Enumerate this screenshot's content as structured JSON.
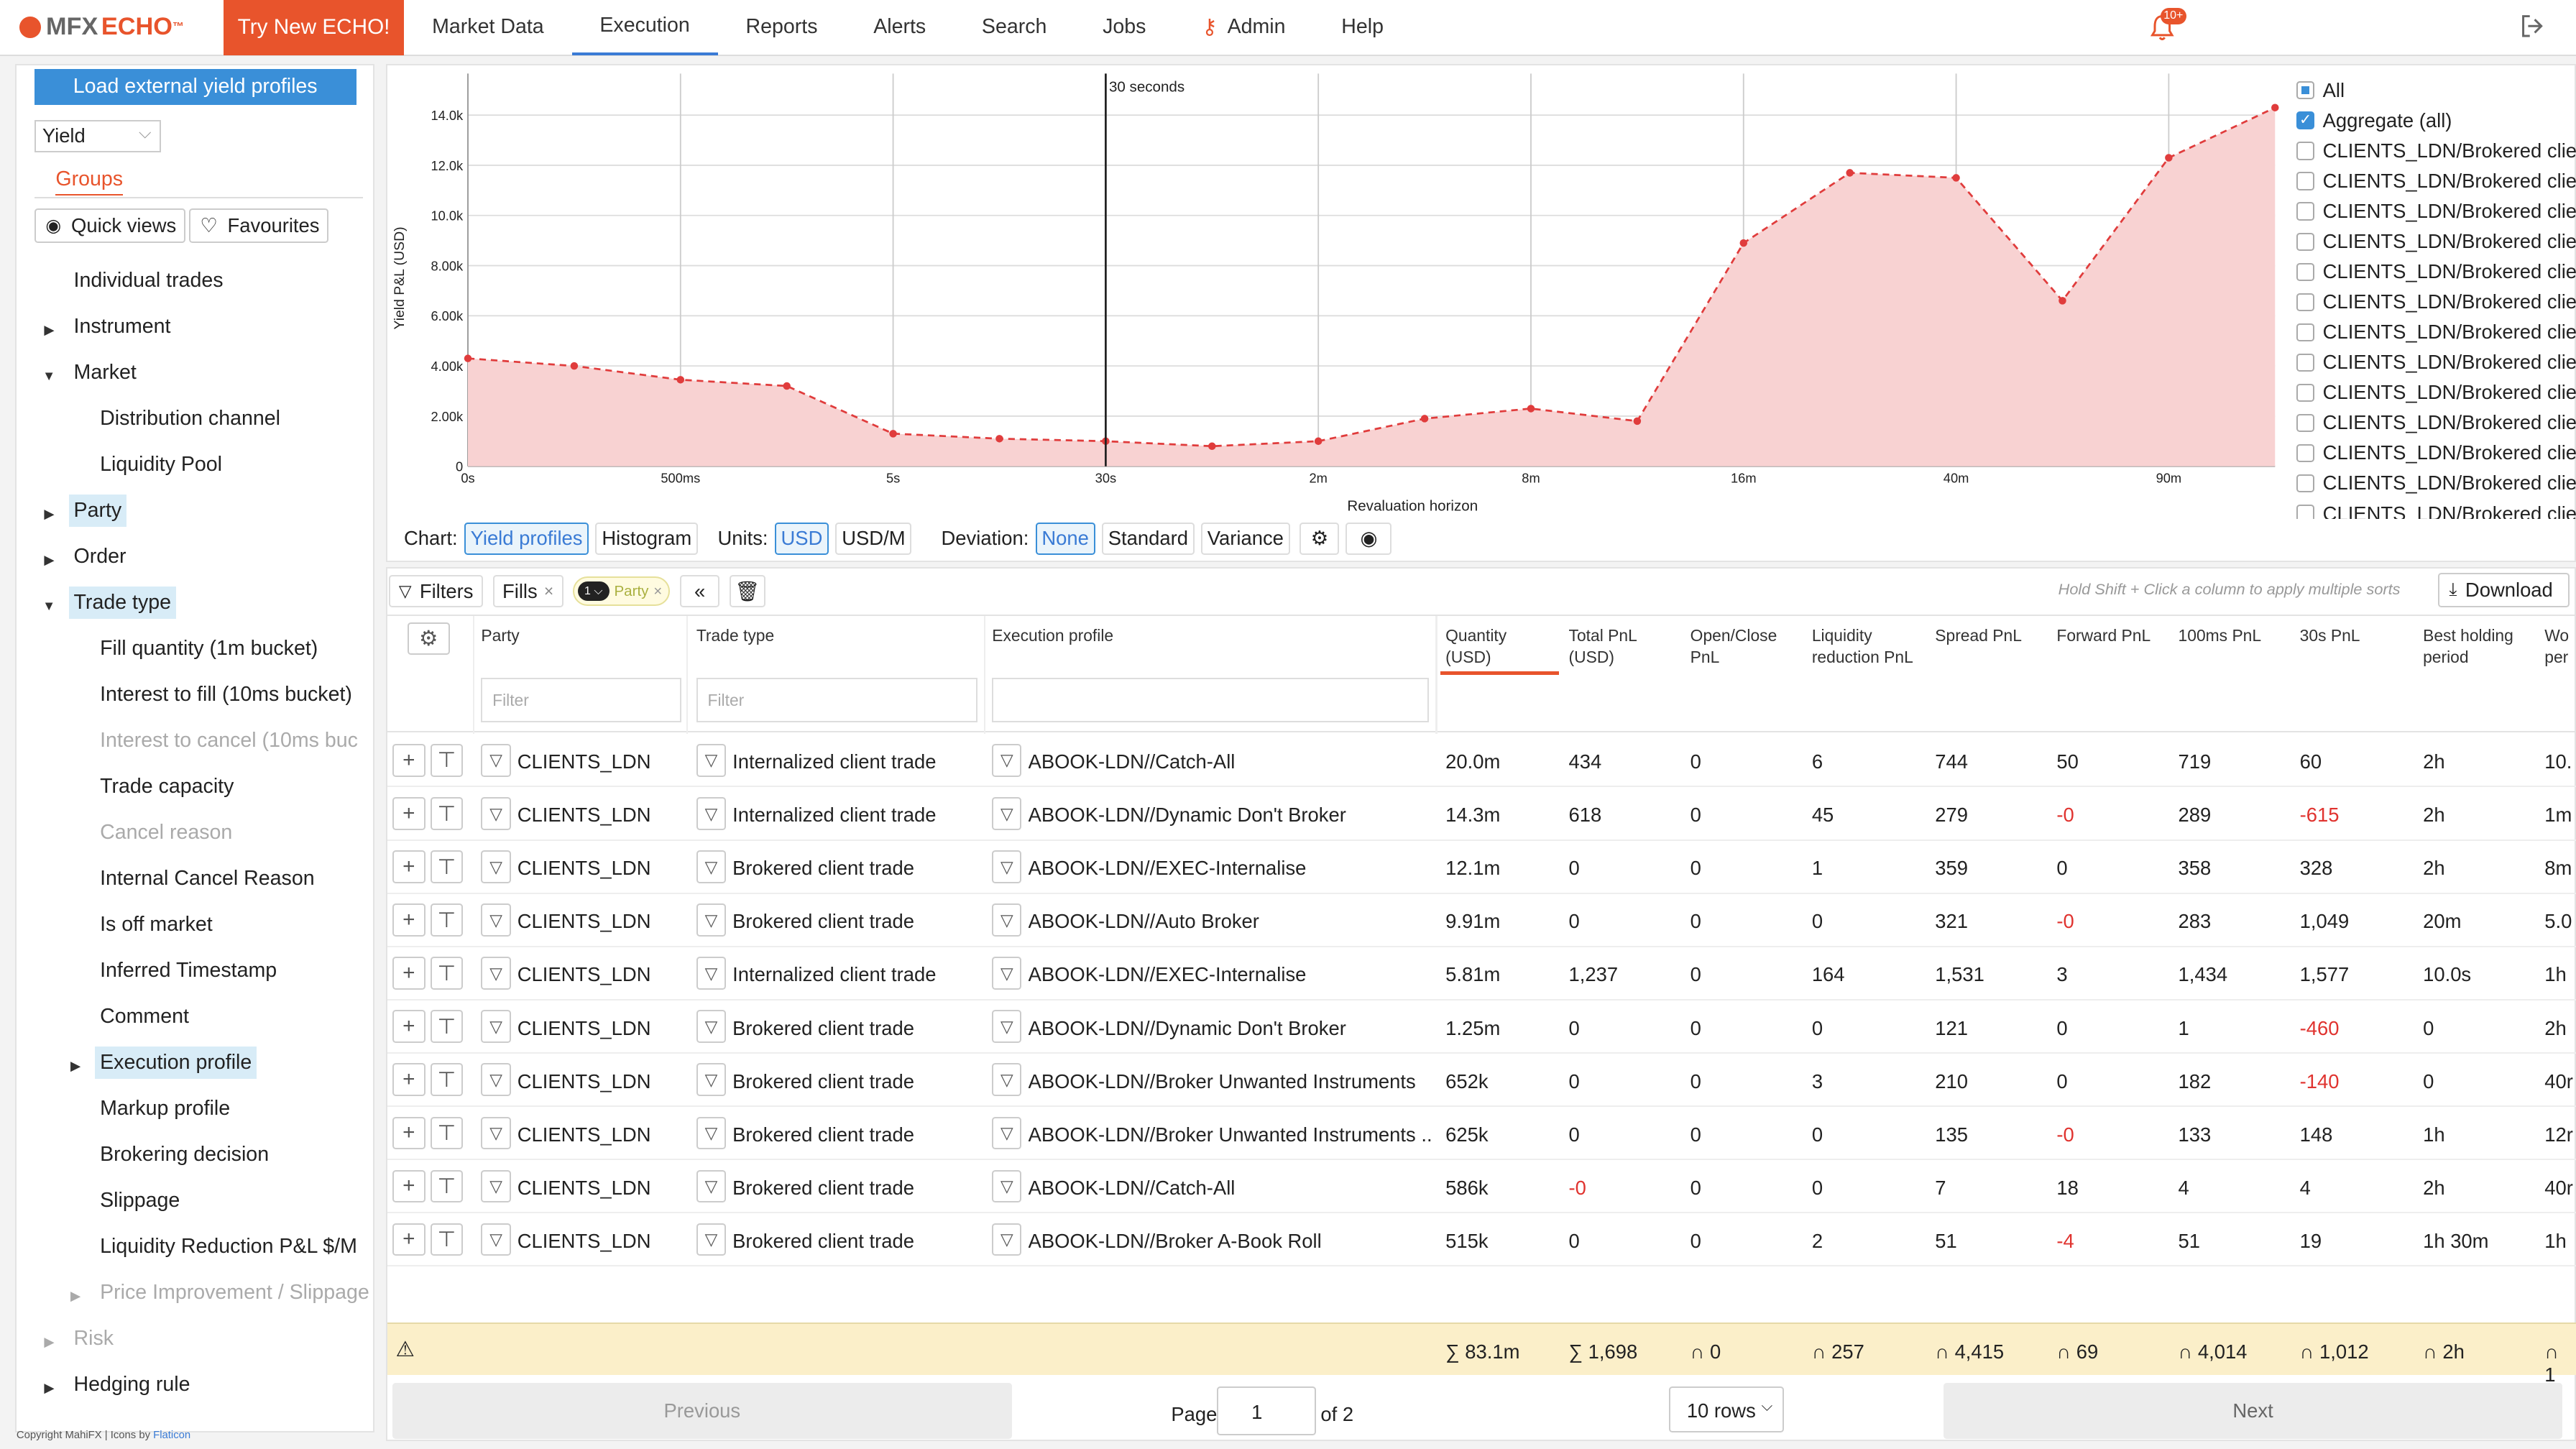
{
  "app": {
    "logo_prefix": "MFX",
    "logo_name": "ECHO",
    "logo_tm": "™",
    "try_button": "Try New ECHO!",
    "notifications_badge": "10+"
  },
  "nav": [
    "Market Data",
    "Execution",
    "Reports",
    "Alerts",
    "Search",
    "Jobs",
    "Admin",
    "Help"
  ],
  "nav_active": "Execution",
  "sidebar": {
    "load_button": "Load external yield profiles",
    "yield_select": "Yield",
    "groups_tab": "Groups",
    "quick_views": "Quick views",
    "favourites": "Favourites",
    "tree": [
      {
        "label": "Individual trades"
      },
      {
        "label": "Instrument"
      },
      {
        "label": "Market"
      },
      {
        "label": "Distribution channel"
      },
      {
        "label": "Liquidity Pool"
      },
      {
        "label": "Party"
      },
      {
        "label": "Order"
      },
      {
        "label": "Trade type"
      },
      {
        "label": "Fill quantity (1m bucket)"
      },
      {
        "label": "Interest to fill (10ms bucket)"
      },
      {
        "label": "Interest to cancel (10ms bucket)"
      },
      {
        "label": "Trade capacity"
      },
      {
        "label": "Cancel reason"
      },
      {
        "label": "Internal Cancel Reason"
      },
      {
        "label": "Is off market"
      },
      {
        "label": "Inferred Timestamp"
      },
      {
        "label": "Comment"
      },
      {
        "label": "Execution profile"
      },
      {
        "label": "Markup profile"
      },
      {
        "label": "Brokering decision"
      },
      {
        "label": "Slippage"
      },
      {
        "label": "Liquidity Reduction P&L $/M"
      },
      {
        "label": "Price Improvement / Slippage"
      },
      {
        "label": "Risk"
      },
      {
        "label": "Hedging rule"
      }
    ],
    "copyright_text": "Copyright MahiFX | Icons by ",
    "copyright_link": "Flaticon"
  },
  "chart_data": {
    "type": "area",
    "ylabel": "Yield P&L (USD)",
    "xlabel": "Revaluation horizon",
    "x_ticks": [
      "0s",
      "500ms",
      "5s",
      "30s",
      "2m",
      "8m",
      "16m",
      "40m",
      "90m"
    ],
    "y_ticks": [
      "0",
      "2.00k",
      "4.00k",
      "6.00k",
      "8.00k",
      "10.0k",
      "12.0k",
      "14.0k"
    ],
    "ylim": [
      0,
      15000
    ],
    "marker_label": "30 seconds",
    "series": [
      {
        "values": [
          4300,
          4000,
          3450,
          3200,
          1300,
          1100,
          1000,
          800,
          1000,
          1900,
          2300,
          1800,
          8900,
          11700,
          11500,
          6600,
          12300,
          14300
        ]
      }
    ],
    "color": "#e03c3c",
    "fill": "#f8d2d2"
  },
  "legend": {
    "all": "All",
    "aggregate": "Aggregate (all)",
    "items": [
      "CLIENTS_LDN/Brokered client",
      "CLIENTS_LDN/Brokered client",
      "CLIENTS_LDN/Brokered client",
      "CLIENTS_LDN/Brokered client",
      "CLIENTS_LDN/Brokered client",
      "CLIENTS_LDN/Brokered client",
      "CLIENTS_LDN/Brokered client",
      "CLIENTS_LDN/Brokered client",
      "CLIENTS_LDN/Brokered client",
      "CLIENTS_LDN/Brokered client",
      "CLIENTS_LDN/Brokered client",
      "CLIENTS_LDN/Brokered client",
      "CLIENTS_LDN/Brokered client"
    ]
  },
  "chart_controls": {
    "chart_label": "Chart:",
    "yield_profiles": "Yield profiles",
    "histogram": "Histogram",
    "units_label": "Units:",
    "usd": "USD",
    "usdm": "USD/M",
    "deviation_label": "Deviation:",
    "none": "None",
    "standard": "Standard",
    "variance": "Variance"
  },
  "grid_toolbar": {
    "filters": "Filters",
    "fills": "Fills",
    "party_count": "1",
    "party_pill": "Party",
    "hint": "Hold Shift + Click a column to apply multiple sorts",
    "download": "Download"
  },
  "columns": {
    "party": "Party",
    "trade_type": "Trade type",
    "execution_profile": "Execution profile",
    "quantity": "Quantity (USD)",
    "total_pnl": "Total PnL (USD)",
    "open_close": "Open/Close PnL",
    "liq_red": "Liquidity reduction PnL",
    "spread": "Spread PnL",
    "forward": "Forward PnL",
    "ms100": "100ms PnL",
    "s30": "30s PnL",
    "best_hold": "Best holding period",
    "worst": "Wo per",
    "filter_placeholder": "Filter"
  },
  "rows": [
    {
      "party": "CLIENTS_LDN",
      "trade_type": "Internalized client trade",
      "profile": "ABOOK-LDN//Catch-All",
      "qty": "20.0m",
      "total": "434",
      "oc": "0",
      "liq": "6",
      "spread": "744",
      "fwd": "50",
      "ms100": "719",
      "s30": "60",
      "best": "2h",
      "wo": "10."
    },
    {
      "party": "CLIENTS_LDN",
      "trade_type": "Internalized client trade",
      "profile": "ABOOK-LDN//Dynamic Don't Broker",
      "qty": "14.3m",
      "total": "618",
      "oc": "0",
      "liq": "45",
      "spread": "279",
      "fwd": "-0",
      "ms100": "289",
      "s30": "-615",
      "best": "2h",
      "wo": "1m"
    },
    {
      "party": "CLIENTS_LDN",
      "trade_type": "Brokered client trade",
      "profile": "ABOOK-LDN//EXEC-Internalise",
      "qty": "12.1m",
      "total": "0",
      "oc": "0",
      "liq": "1",
      "spread": "359",
      "fwd": "0",
      "ms100": "358",
      "s30": "328",
      "best": "2h",
      "wo": "8m"
    },
    {
      "party": "CLIENTS_LDN",
      "trade_type": "Brokered client trade",
      "profile": "ABOOK-LDN//Auto Broker",
      "qty": "9.91m",
      "total": "0",
      "oc": "0",
      "liq": "0",
      "spread": "321",
      "fwd": "-0",
      "ms100": "283",
      "s30": "1,049",
      "best": "20m",
      "wo": "5.0"
    },
    {
      "party": "CLIENTS_LDN",
      "trade_type": "Internalized client trade",
      "profile": "ABOOK-LDN//EXEC-Internalise",
      "qty": "5.81m",
      "total": "1,237",
      "oc": "0",
      "liq": "164",
      "spread": "1,531",
      "fwd": "3",
      "ms100": "1,434",
      "s30": "1,577",
      "best": "10.0s",
      "wo": "1h"
    },
    {
      "party": "CLIENTS_LDN",
      "trade_type": "Brokered client trade",
      "profile": "ABOOK-LDN//Dynamic Don't Broker",
      "qty": "1.25m",
      "total": "0",
      "oc": "0",
      "liq": "0",
      "spread": "121",
      "fwd": "0",
      "ms100": "1",
      "s30": "-460",
      "best": "0",
      "wo": "2h"
    },
    {
      "party": "CLIENTS_LDN",
      "trade_type": "Brokered client trade",
      "profile": "ABOOK-LDN//Broker Unwanted Instruments",
      "qty": "652k",
      "total": "0",
      "oc": "0",
      "liq": "3",
      "spread": "210",
      "fwd": "0",
      "ms100": "182",
      "s30": "-140",
      "best": "0",
      "wo": "40r"
    },
    {
      "party": "CLIENTS_LDN",
      "trade_type": "Brokered client trade",
      "profile": "ABOOK-LDN//Broker Unwanted Instruments ...",
      "qty": "625k",
      "total": "0",
      "oc": "0",
      "liq": "0",
      "spread": "135",
      "fwd": "-0",
      "ms100": "133",
      "s30": "148",
      "best": "1h",
      "wo": "12r"
    },
    {
      "party": "CLIENTS_LDN",
      "trade_type": "Brokered client trade",
      "profile": "ABOOK-LDN//Catch-All",
      "qty": "586k",
      "total": "-0",
      "oc": "0",
      "liq": "0",
      "spread": "7",
      "fwd": "18",
      "ms100": "4",
      "s30": "4",
      "best": "2h",
      "wo": "40r"
    },
    {
      "party": "CLIENTS_LDN",
      "trade_type": "Brokered client trade",
      "profile": "ABOOK-LDN//Broker A-Book Roll",
      "qty": "515k",
      "total": "0",
      "oc": "0",
      "liq": "2",
      "spread": "51",
      "fwd": "-4",
      "ms100": "51",
      "s30": "19",
      "best": "1h 30m",
      "wo": "1h"
    }
  ],
  "totals": {
    "qty": "∑ 83.1m",
    "total": "∑ 1,698",
    "oc": "∩ 0",
    "liq": "∩ 257",
    "spread": "∩ 4,415",
    "fwd": "∩ 69",
    "ms100": "∩ 4,014",
    "s30": "∩ 1,012",
    "best": "∩ 2h",
    "wo": "∩ 1"
  },
  "pager": {
    "previous": "Previous",
    "page_label": "Page",
    "page": "1",
    "of": "of 2",
    "rows": "10 rows",
    "next": "Next"
  }
}
